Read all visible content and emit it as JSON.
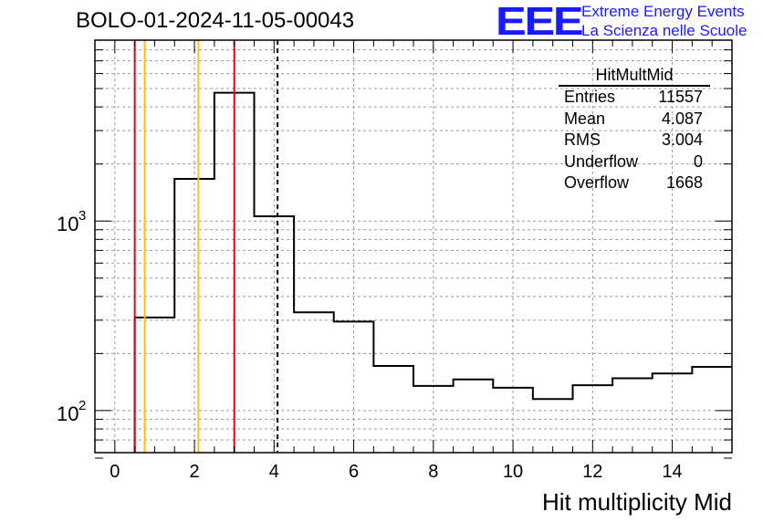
{
  "header": {
    "title": "BOLO-01-2024-11-05-00043"
  },
  "logo": {
    "mark": "EEE",
    "line1": "Extreme Energy Events",
    "line2": "La Scienza nelle Scuole",
    "color": "#1a1aff"
  },
  "stats_box": {
    "title": "HitMultMid",
    "rows": [
      {
        "label": "Entries",
        "value": "11557"
      },
      {
        "label": "Mean",
        "value": "4.087"
      },
      {
        "label": "RMS",
        "value": "3.004"
      },
      {
        "label": "Underflow",
        "value": "0"
      },
      {
        "label": "Overflow",
        "value": "1668"
      }
    ]
  },
  "chart_data": {
    "type": "bar",
    "style": "step-histogram",
    "xlabel": "Hit multiplicity Mid",
    "ylabel": "",
    "xlim": [
      -0.5,
      15.5
    ],
    "ylim": [
      60,
      9000
    ],
    "yscale": "log",
    "grid": true,
    "bins": [
      {
        "x0": -0.5,
        "x1": 0.5,
        "value": 0
      },
      {
        "x0": 0.5,
        "x1": 1.5,
        "value": 310
      },
      {
        "x0": 1.5,
        "x1": 2.5,
        "value": 1670
      },
      {
        "x0": 2.5,
        "x1": 3.5,
        "value": 4750
      },
      {
        "x0": 3.5,
        "x1": 4.5,
        "value": 1060
      },
      {
        "x0": 4.5,
        "x1": 5.5,
        "value": 330
      },
      {
        "x0": 5.5,
        "x1": 6.5,
        "value": 295
      },
      {
        "x0": 6.5,
        "x1": 7.5,
        "value": 172
      },
      {
        "x0": 7.5,
        "x1": 8.5,
        "value": 135
      },
      {
        "x0": 8.5,
        "x1": 9.5,
        "value": 146
      },
      {
        "x0": 9.5,
        "x1": 10.5,
        "value": 132
      },
      {
        "x0": 10.5,
        "x1": 11.5,
        "value": 115
      },
      {
        "x0": 11.5,
        "x1": 12.5,
        "value": 136
      },
      {
        "x0": 12.5,
        "x1": 13.5,
        "value": 148
      },
      {
        "x0": 13.5,
        "x1": 14.5,
        "value": 157
      },
      {
        "x0": 14.5,
        "x1": 15.5,
        "value": 170
      }
    ],
    "x_ticks": [
      0,
      2,
      4,
      6,
      8,
      10,
      12,
      14
    ],
    "y_ticks": [
      {
        "value": 100,
        "base": "10",
        "exp": "2"
      },
      {
        "value": 1000,
        "base": "10",
        "exp": "3"
      }
    ],
    "vlines": [
      {
        "x": 0.5,
        "color": "#e8000b",
        "style": "solid"
      },
      {
        "x": 0.75,
        "color": "#ffbf00",
        "style": "solid"
      },
      {
        "x": 2.1,
        "color": "#ffbf00",
        "style": "solid"
      },
      {
        "x": 3.0,
        "color": "#e8000b",
        "style": "solid"
      },
      {
        "x": 4.087,
        "color": "#000000",
        "style": "dashed"
      }
    ]
  }
}
